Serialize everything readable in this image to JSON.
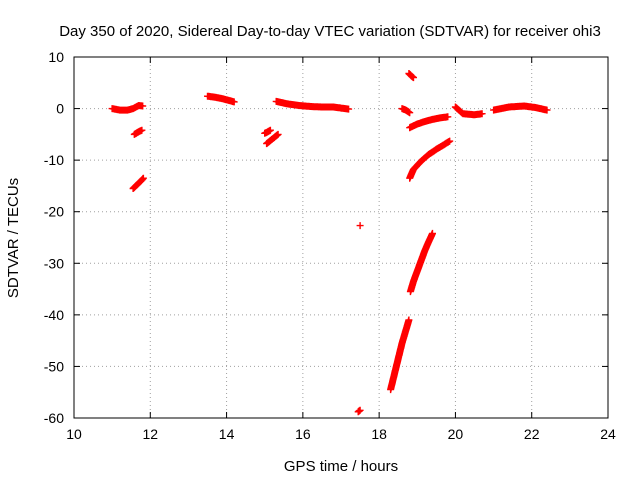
{
  "chart_data": {
    "type": "scatter",
    "title": "Day 350 of 2020, Sidereal Day-to-day VTEC variation (SDTVAR) for receiver ohi3",
    "xlabel": "GPS time / hours",
    "ylabel": "SDTVAR / TECUs",
    "xlim": [
      10,
      24
    ],
    "ylim": [
      -60,
      10
    ],
    "xticks": [
      10,
      12,
      14,
      16,
      18,
      20,
      22,
      24
    ],
    "yticks": [
      10,
      0,
      -10,
      -20,
      -30,
      -40,
      -50,
      -60
    ],
    "xtick_labels": [
      "10",
      "12",
      "14",
      "16",
      "18",
      "20",
      "22",
      "24"
    ],
    "ytick_labels": [
      "10",
      "0",
      "-10",
      "-20",
      "-30",
      "-40",
      "-50",
      "-60"
    ],
    "grid": true,
    "marker": "+",
    "color": "#ff0000",
    "segments": [
      {
        "x": [
          11.0,
          11.2,
          11.4,
          11.55,
          11.7,
          11.8
        ],
        "y": [
          0.0,
          -0.3,
          -0.3,
          0.0,
          0.6,
          0.5
        ]
      },
      {
        "x": [
          11.58,
          11.65,
          11.72,
          11.78
        ],
        "y": [
          -5.0,
          -4.7,
          -4.4,
          -4.2
        ]
      },
      {
        "x": [
          11.55,
          11.62,
          11.69,
          11.76,
          11.82
        ],
        "y": [
          -15.5,
          -15.0,
          -14.5,
          -14.0,
          -13.5
        ]
      },
      {
        "x": [
          13.5,
          13.7,
          13.9,
          14.1,
          14.2
        ],
        "y": [
          2.4,
          2.2,
          1.9,
          1.5,
          1.3
        ]
      },
      {
        "x": [
          15.0,
          15.08,
          15.15
        ],
        "y": [
          -4.8,
          -4.5,
          -4.2
        ]
      },
      {
        "x": [
          15.05,
          15.15,
          15.25,
          15.35
        ],
        "y": [
          -6.8,
          -6.2,
          -5.6,
          -5.0
        ]
      },
      {
        "x": [
          15.3,
          15.6,
          15.9,
          16.2,
          16.5,
          16.8,
          17.0,
          17.2
        ],
        "y": [
          1.4,
          0.9,
          0.6,
          0.4,
          0.3,
          0.3,
          0.1,
          -0.1
        ]
      },
      {
        "x": [
          17.5
        ],
        "y": [
          -22.7
        ]
      },
      {
        "x": [
          17.45,
          17.5
        ],
        "y": [
          -58.8,
          -58.5
        ]
      },
      {
        "x": [
          18.3,
          18.4,
          18.5,
          18.6,
          18.7,
          18.78
        ],
        "y": [
          -54.5,
          -51.5,
          -48.5,
          -45.5,
          -43.0,
          -41.0
        ]
      },
      {
        "x": [
          18.6,
          18.7,
          18.8
        ],
        "y": [
          0.0,
          -0.3,
          -0.8
        ]
      },
      {
        "x": [
          18.78,
          18.85,
          18.9
        ],
        "y": [
          6.8,
          6.3,
          6.0
        ]
      },
      {
        "x": [
          18.8,
          19.0,
          19.2,
          19.4,
          19.6,
          19.8
        ],
        "y": [
          -3.7,
          -3.0,
          -2.5,
          -2.1,
          -1.8,
          -1.6
        ]
      },
      {
        "x": [
          18.8,
          18.9,
          19.1,
          19.3,
          19.5,
          19.7,
          19.85
        ],
        "y": [
          -13.5,
          -11.8,
          -10.2,
          -8.9,
          -7.9,
          -7.0,
          -6.3
        ]
      },
      {
        "x": [
          18.82,
          18.9,
          19.0,
          19.1,
          19.2,
          19.3,
          19.4
        ],
        "y": [
          -35.5,
          -33.5,
          -31.5,
          -29.5,
          -27.5,
          -25.8,
          -24.2
        ]
      },
      {
        "x": [
          20.0,
          20.2,
          20.5,
          20.7
        ],
        "y": [
          0.3,
          -1.0,
          -1.2,
          -1.0
        ]
      },
      {
        "x": [
          21.0,
          21.4,
          21.8,
          22.1,
          22.4
        ],
        "y": [
          -0.3,
          0.3,
          0.5,
          0.2,
          -0.3
        ]
      }
    ]
  }
}
